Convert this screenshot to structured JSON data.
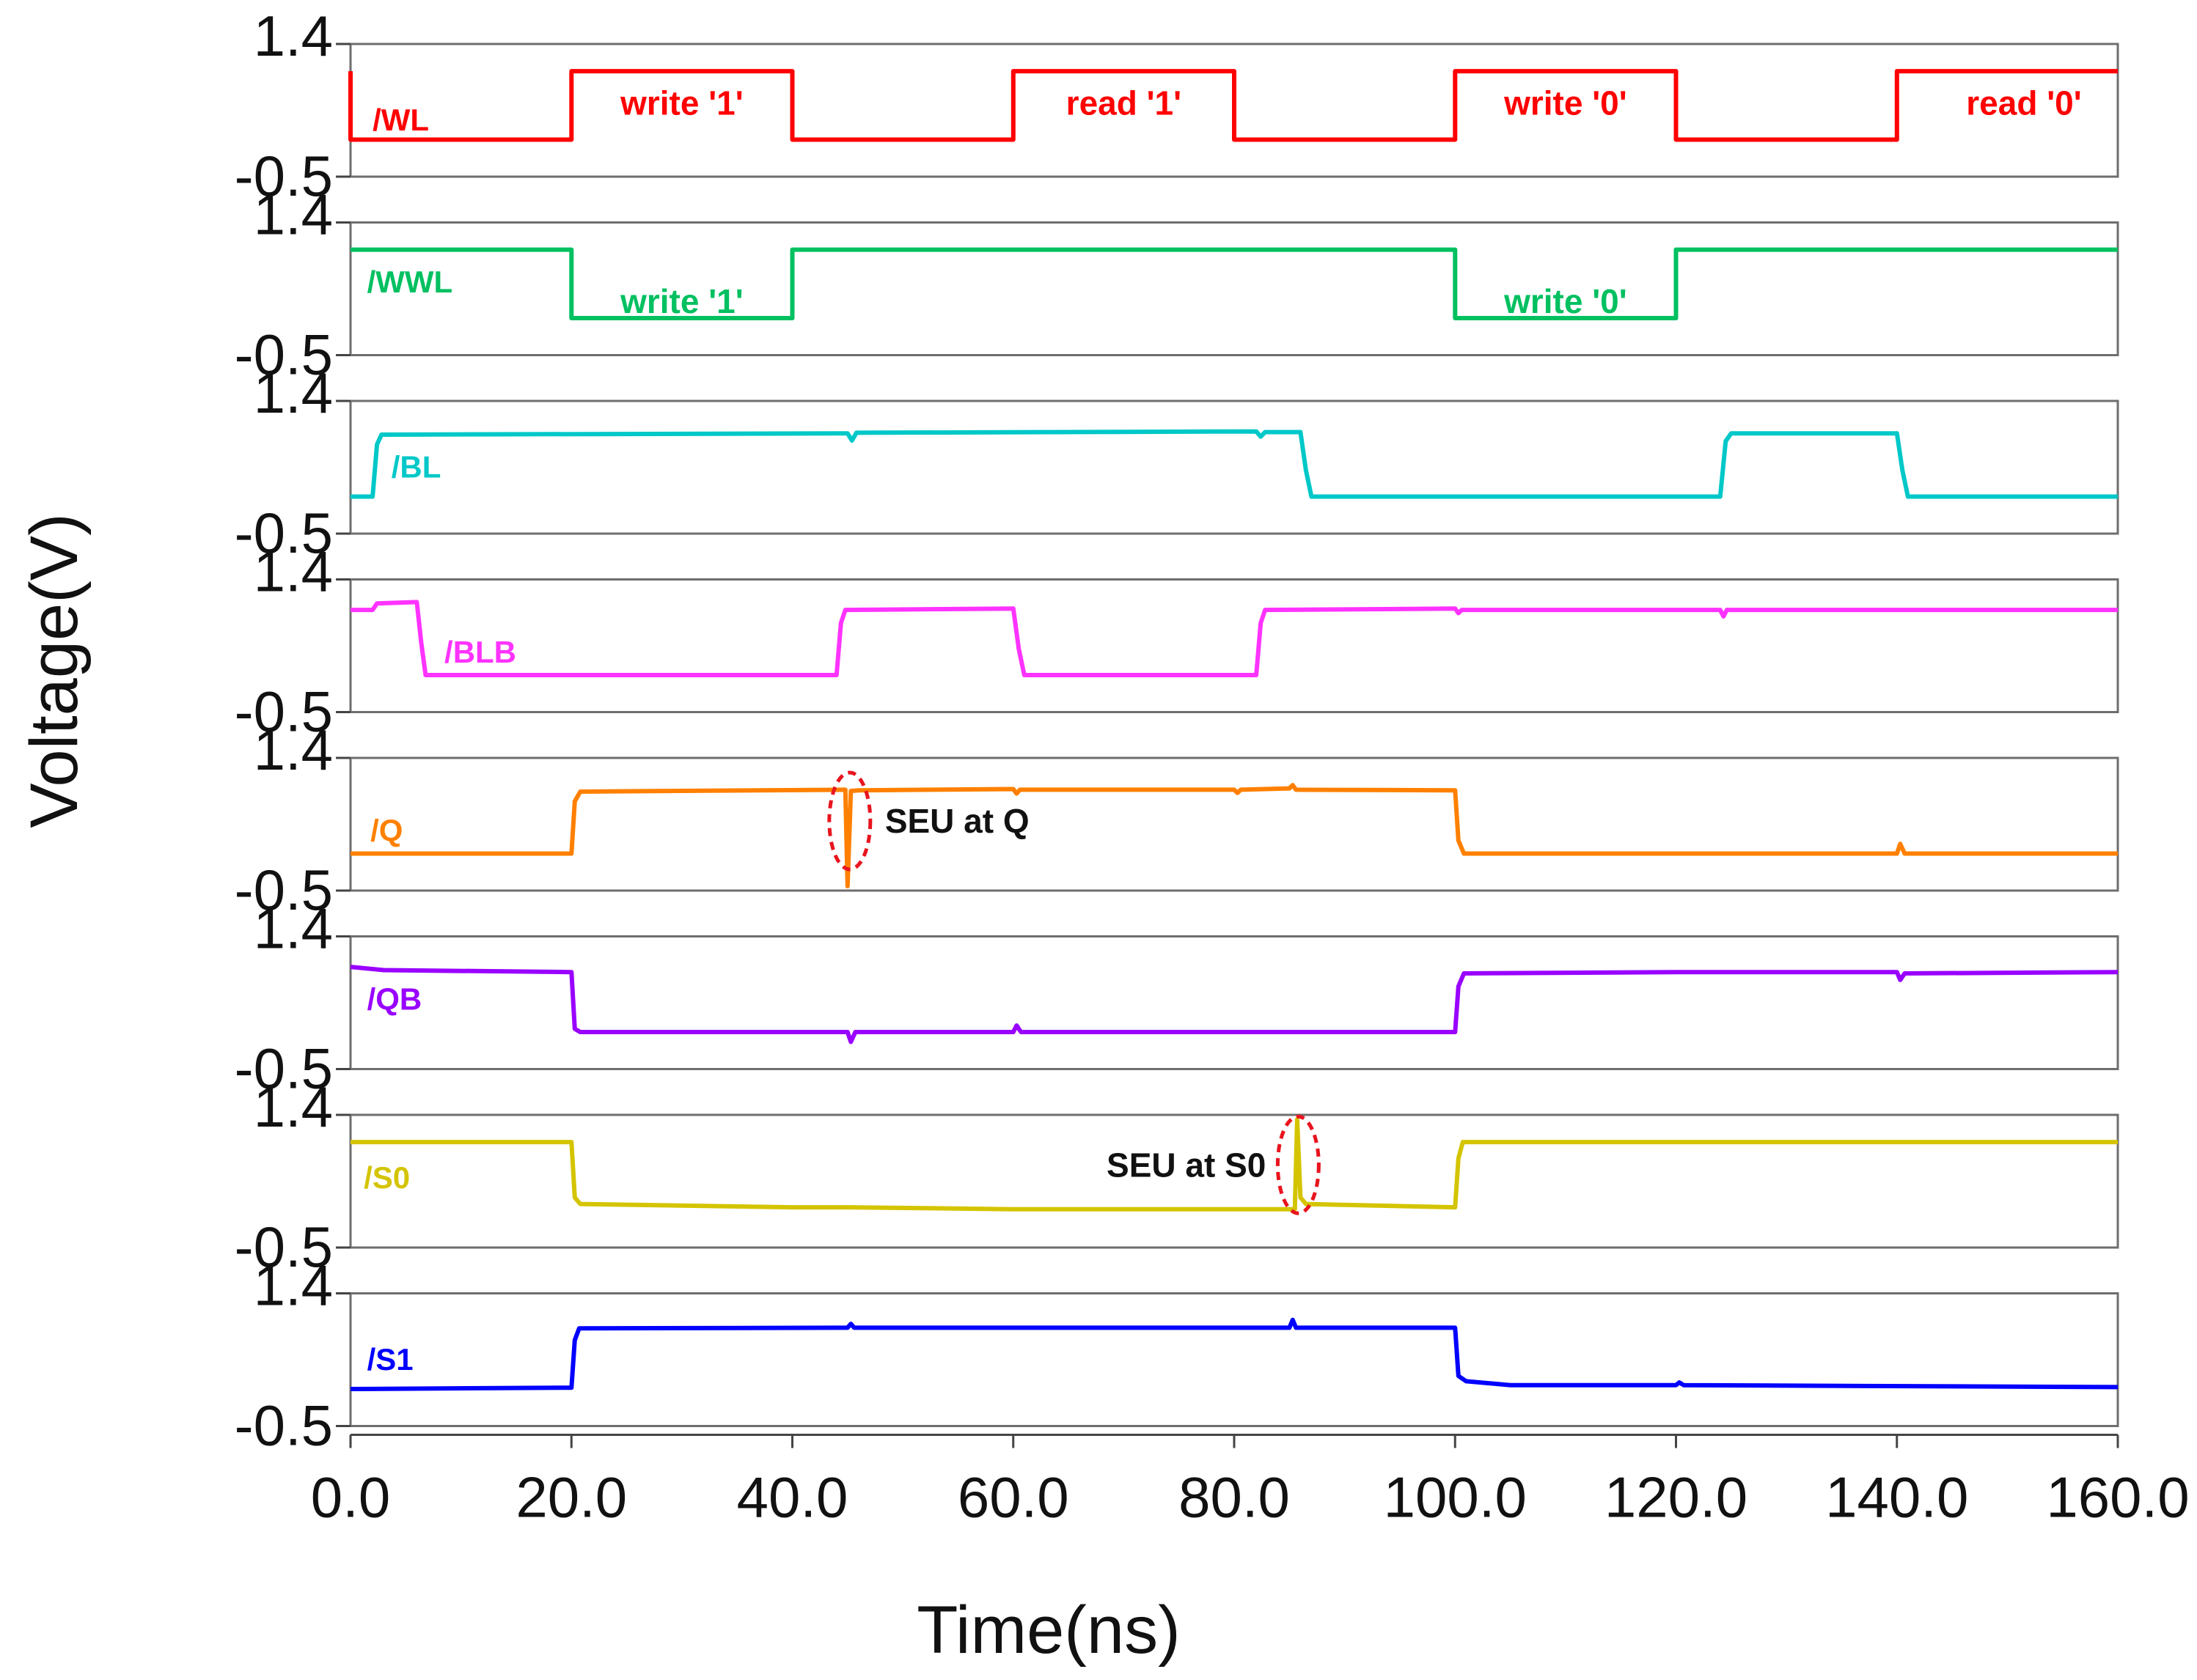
{
  "chart_data": {
    "type": "line",
    "xlabel": "Time(ns)",
    "ylabel": "Voltage(V)",
    "xlim": [
      0,
      160
    ],
    "x_ticks": [
      "0.0",
      "20.0",
      "40.0",
      "60.0",
      "80.0",
      "100.0",
      "120.0",
      "140.0",
      "160.0"
    ],
    "ylim": [
      -0.5,
      1.4
    ],
    "y_ticks": [
      "1.4",
      "-0.5"
    ],
    "panels": [
      {
        "name": "/WL",
        "color": "#ff0000",
        "label_time": 2,
        "label_level": 0.3,
        "points": [
          [
            0,
            1.05
          ],
          [
            0,
            0
          ],
          [
            20,
            0
          ],
          [
            20,
            1.05
          ],
          [
            40,
            1.05
          ],
          [
            40,
            0
          ],
          [
            60,
            0
          ],
          [
            60,
            1.05
          ],
          [
            80,
            1.05
          ],
          [
            80,
            0
          ],
          [
            100,
            0
          ],
          [
            100,
            1.05
          ],
          [
            120,
            1.05
          ],
          [
            120,
            0
          ],
          [
            140,
            0
          ],
          [
            140,
            1.05
          ],
          [
            160,
            1.05
          ]
        ],
        "annotations": [
          {
            "text": "write '1'",
            "time": 30,
            "level": 0.55
          },
          {
            "text": "read '1'",
            "time": 70,
            "level": 0.55
          },
          {
            "text": "write '0'",
            "time": 110,
            "level": 0.55
          },
          {
            "text": "read '0'",
            "time": 151.5,
            "level": 0.55
          }
        ]
      },
      {
        "name": "/WWL",
        "color": "#00c060",
        "label_time": 1.5,
        "label_level": 0.55,
        "points": [
          [
            0,
            1.05
          ],
          [
            20,
            1.05
          ],
          [
            20,
            0
          ],
          [
            40,
            0
          ],
          [
            40,
            1.05
          ],
          [
            100,
            1.05
          ],
          [
            100,
            0
          ],
          [
            120,
            0
          ],
          [
            120,
            1.05
          ],
          [
            160,
            1.05
          ]
        ],
        "annotations": [
          {
            "text": "write '1'",
            "time": 30,
            "level": 0.25
          },
          {
            "text": "write '0'",
            "time": 110,
            "level": 0.25
          }
        ]
      },
      {
        "name": "/BL",
        "color": "#00c8c8",
        "label_time": 3.7,
        "label_level": 0.45,
        "points": [
          [
            0,
            0
          ],
          [
            2,
            0
          ],
          [
            2.4,
            0.8
          ],
          [
            2.8,
            0.95
          ],
          [
            45,
            0.97
          ],
          [
            45.4,
            0.86
          ],
          [
            45.8,
            0.98
          ],
          [
            82,
            1.0
          ],
          [
            82.4,
            0.92
          ],
          [
            82.8,
            0.99
          ],
          [
            86,
            0.99
          ],
          [
            86.5,
            0.4
          ],
          [
            87,
            0
          ],
          [
            124,
            0
          ],
          [
            124.5,
            0.85
          ],
          [
            125,
            0.97
          ],
          [
            140,
            0.97
          ],
          [
            140.5,
            0.4
          ],
          [
            141,
            0
          ],
          [
            160,
            0
          ]
        ],
        "annotations": []
      },
      {
        "name": "/BLB",
        "color": "#ff33ff",
        "label_time": 8.5,
        "label_level": 0.35,
        "points": [
          [
            0,
            1.0
          ],
          [
            2,
            1.0
          ],
          [
            2.4,
            1.1
          ],
          [
            6,
            1.12
          ],
          [
            6.4,
            0.5
          ],
          [
            6.8,
            0
          ],
          [
            44,
            0
          ],
          [
            44.4,
            0.8
          ],
          [
            44.8,
            1.0
          ],
          [
            60,
            1.02
          ],
          [
            60.5,
            0.4
          ],
          [
            61,
            0
          ],
          [
            82,
            0
          ],
          [
            82.4,
            0.8
          ],
          [
            82.8,
            1.0
          ],
          [
            100,
            1.02
          ],
          [
            100.3,
            0.95
          ],
          [
            100.6,
            1.0
          ],
          [
            124,
            1.0
          ],
          [
            124.3,
            0.9
          ],
          [
            124.6,
            1.0
          ],
          [
            160,
            1.0
          ]
        ],
        "annotations": []
      },
      {
        "name": "/Q",
        "color": "#ff8000",
        "label_time": 1.8,
        "label_level": 0.35,
        "points": [
          [
            0,
            0
          ],
          [
            20,
            0
          ],
          [
            20.3,
            0.8
          ],
          [
            20.8,
            0.95
          ],
          [
            44.8,
            0.98
          ],
          [
            45,
            -0.5
          ],
          [
            45.3,
            0.96
          ],
          [
            46,
            0.97
          ],
          [
            60,
            0.99
          ],
          [
            60.3,
            0.92
          ],
          [
            60.6,
            0.98
          ],
          [
            80,
            0.98
          ],
          [
            80.3,
            0.93
          ],
          [
            80.6,
            0.98
          ],
          [
            85,
            1.0
          ],
          [
            85.3,
            1.05
          ],
          [
            85.6,
            0.98
          ],
          [
            100,
            0.97
          ],
          [
            100.3,
            0.2
          ],
          [
            100.8,
            0
          ],
          [
            140,
            0
          ],
          [
            140.3,
            0.15
          ],
          [
            140.7,
            0
          ],
          [
            160,
            0
          ]
        ],
        "annotations": []
      },
      {
        "name": "/QB",
        "color": "#9900ff",
        "label_time": 1.5,
        "label_level": 0.5,
        "points": [
          [
            0,
            1.0
          ],
          [
            3,
            0.95
          ],
          [
            20,
            0.92
          ],
          [
            20.3,
            0.05
          ],
          [
            20.8,
            0
          ],
          [
            45,
            0
          ],
          [
            45.3,
            -0.15
          ],
          [
            45.7,
            0
          ],
          [
            60,
            0
          ],
          [
            60.3,
            0.1
          ],
          [
            60.7,
            0
          ],
          [
            100,
            0
          ],
          [
            100.3,
            0.7
          ],
          [
            100.8,
            0.9
          ],
          [
            120,
            0.92
          ],
          [
            140,
            0.92
          ],
          [
            140.3,
            0.8
          ],
          [
            140.7,
            0.9
          ],
          [
            160,
            0.92
          ]
        ],
        "annotations": []
      },
      {
        "name": "/S0",
        "color": "#d4c400",
        "label_time": 1.2,
        "label_level": 0.5,
        "points": [
          [
            0,
            1.05
          ],
          [
            20,
            1.05
          ],
          [
            20.3,
            0.2
          ],
          [
            20.8,
            0.1
          ],
          [
            40,
            0.05
          ],
          [
            45,
            0.05
          ],
          [
            60,
            0.02
          ],
          [
            80,
            0.02
          ],
          [
            85.5,
            0.02
          ],
          [
            85.7,
            1.4
          ],
          [
            86,
            0.2
          ],
          [
            86.5,
            0.1
          ],
          [
            100,
            0.05
          ],
          [
            100.3,
            0.8
          ],
          [
            100.7,
            1.05
          ],
          [
            160,
            1.05
          ]
        ],
        "annotations": []
      },
      {
        "name": "/S1",
        "color": "#0000ff",
        "label_time": 1.5,
        "label_level": 0.45,
        "points": [
          [
            0,
            0
          ],
          [
            20,
            0.02
          ],
          [
            20.3,
            0.75
          ],
          [
            20.7,
            0.93
          ],
          [
            45,
            0.94
          ],
          [
            45.3,
            1.0
          ],
          [
            45.6,
            0.94
          ],
          [
            85,
            0.94
          ],
          [
            85.3,
            1.06
          ],
          [
            85.6,
            0.94
          ],
          [
            100,
            0.94
          ],
          [
            100.3,
            0.2
          ],
          [
            101,
            0.12
          ],
          [
            105,
            0.06
          ],
          [
            120,
            0.06
          ],
          [
            120.3,
            0.1
          ],
          [
            120.7,
            0.06
          ],
          [
            160,
            0.03
          ]
        ],
        "annotations": []
      }
    ],
    "callouts": [
      {
        "text": "SEU at Q",
        "panel": 4,
        "time": 45.2,
        "level": 0.5,
        "text_side": "right"
      },
      {
        "text": "SEU at S0",
        "panel": 6,
        "time": 85.8,
        "level": 0.7,
        "text_side": "left"
      }
    ]
  }
}
